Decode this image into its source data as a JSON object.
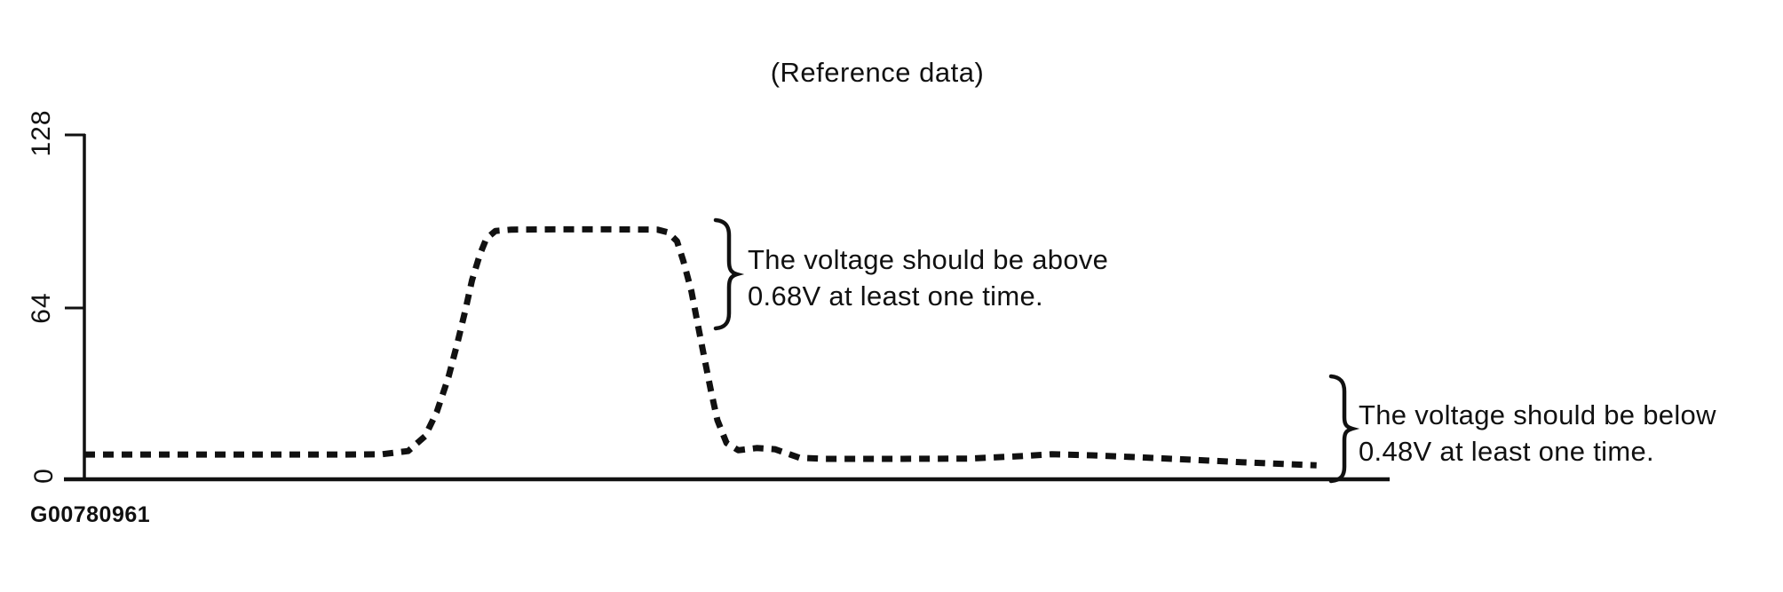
{
  "ink_color": "#111111",
  "background_color": "#ffffff",
  "figure": {
    "title": "(Reference data)",
    "figure_id": "G00780961"
  },
  "chart_data": {
    "type": "line",
    "title": "(Reference data)",
    "xlabel": "",
    "ylabel": "",
    "grid": false,
    "line_style": "thick dashed black waveform (oscilloscope reference trace)",
    "x_axis": {
      "tick_labels": [],
      "range_percent": [
        0,
        100
      ]
    },
    "y_axis": {
      "tick_labels": [
        "128",
        "64",
        "0"
      ],
      "tick_values": [
        128,
        64,
        0
      ],
      "labels_rotated": true
    },
    "ylim": [
      0,
      128
    ],
    "series": [
      {
        "name": "voltage-waveform",
        "points": [
          [
            0,
            9.2
          ],
          [
            7,
            9.2
          ],
          [
            14,
            9.2
          ],
          [
            20,
            9.2
          ],
          [
            22.8,
            9.3
          ],
          [
            24.8,
            10.5
          ],
          [
            26.1,
            16
          ],
          [
            27,
            25
          ],
          [
            27.9,
            38
          ],
          [
            28.6,
            51
          ],
          [
            29.2,
            63
          ],
          [
            29.7,
            74
          ],
          [
            30.3,
            83.5
          ],
          [
            30.8,
            89.5
          ],
          [
            31.5,
            92.3
          ],
          [
            32.7,
            92.8
          ],
          [
            36,
            92.9
          ],
          [
            40,
            92.9
          ],
          [
            43.9,
            92.8
          ],
          [
            44.7,
            91.8
          ],
          [
            45.4,
            88.5
          ],
          [
            45.9,
            81
          ],
          [
            46.5,
            70
          ],
          [
            47,
            57.5
          ],
          [
            47.5,
            45
          ],
          [
            48,
            33
          ],
          [
            48.5,
            22
          ],
          [
            49.2,
            13.5
          ],
          [
            50.1,
            10.8
          ],
          [
            51.5,
            11.6
          ],
          [
            52.9,
            11.2
          ],
          [
            54.8,
            8
          ],
          [
            56.8,
            7.6
          ],
          [
            61.6,
            7.6
          ],
          [
            67.7,
            7.7
          ],
          [
            71.8,
            8.6
          ],
          [
            74.1,
            9.3
          ],
          [
            77.2,
            8.9
          ],
          [
            80.6,
            8.2
          ],
          [
            84.7,
            7.3
          ],
          [
            88.8,
            6.3
          ],
          [
            92.2,
            5.6
          ],
          [
            94.4,
            5.2
          ]
        ]
      }
    ],
    "annotations": [
      {
        "id": "upper-threshold",
        "line1": "The voltage should be above",
        "line2": "0.68V at least one time.",
        "marked_region": "high plateau of waveform"
      },
      {
        "id": "lower-threshold",
        "line1": "The voltage should be below",
        "line2": "0.48V at least one time.",
        "marked_region": "low level at right end of waveform"
      }
    ]
  }
}
